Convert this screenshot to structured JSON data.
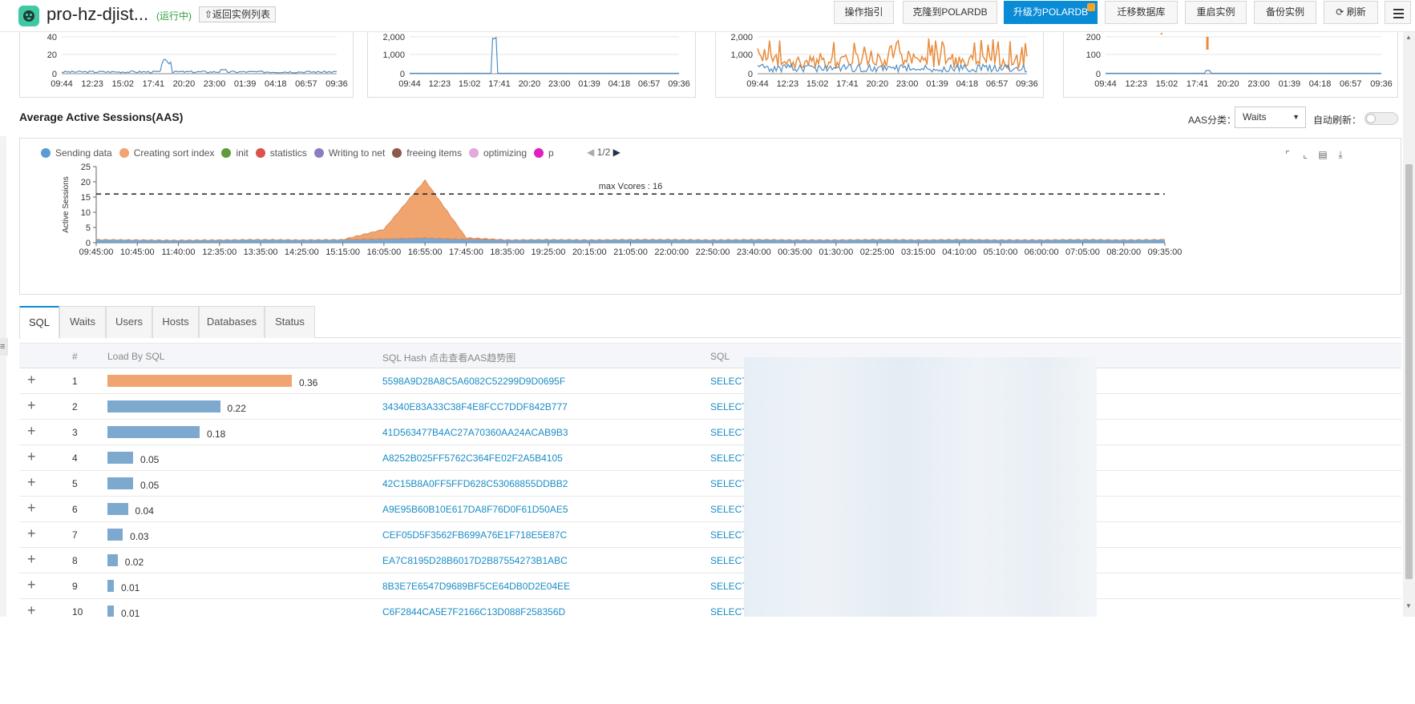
{
  "header": {
    "instance_name": "pro-hz-djist...",
    "status": "(运行中)",
    "back_label": "⇧返回实例列表",
    "buttons": [
      "操作指引",
      "克隆到POLARDB",
      "升级为POLARDB",
      "迁移数据库",
      "重启实例",
      "备份实例",
      "刷新"
    ],
    "refresh_icon": "refresh-icon",
    "menu_icon": "list-menu-icon",
    "primary_color": "#0a8bd6"
  },
  "mini_charts": [
    {
      "y_ticks": [
        "40",
        "20",
        "0"
      ],
      "x_ticks": [
        "09:44",
        "12:23",
        "15:02",
        "17:41",
        "20:20",
        "23:00",
        "01:39",
        "04:18",
        "06:57",
        "09:36"
      ]
    },
    {
      "y_ticks": [
        "2,000",
        "1,000",
        "0"
      ],
      "x_ticks": [
        "09:44",
        "12:23",
        "15:02",
        "17:41",
        "20:20",
        "23:00",
        "01:39",
        "04:18",
        "06:57",
        "09:36"
      ]
    },
    {
      "y_ticks": [
        "2,000",
        "1,000",
        "0"
      ],
      "x_ticks": [
        "09:44",
        "12:23",
        "15:02",
        "17:41",
        "20:20",
        "23:00",
        "01:39",
        "04:18",
        "06:57",
        "09:36"
      ]
    },
    {
      "y_ticks": [
        "200",
        "100",
        "0"
      ],
      "x_ticks": [
        "09:44",
        "12:23",
        "15:02",
        "17:41",
        "20:20",
        "23:00",
        "01:39",
        "04:18",
        "06:57",
        "09:36"
      ]
    }
  ],
  "aas": {
    "title": "Average Active Sessions(AAS)",
    "category_label": "AAS分类：",
    "category_value": "Waits",
    "auto_refresh_label": "自动刷新：",
    "legend": [
      {
        "name": "Sending data",
        "color": "#5b9bd5"
      },
      {
        "name": "Creating sort index",
        "color": "#f0a46e"
      },
      {
        "name": "init",
        "color": "#5e9b3c"
      },
      {
        "name": "statistics",
        "color": "#d9534f"
      },
      {
        "name": "Writing to net",
        "color": "#8e7cc3"
      },
      {
        "name": "freeing items",
        "color": "#8c5a4a"
      },
      {
        "name": "optimizing",
        "color": "#e2a9d9"
      },
      {
        "name": "p",
        "color": "#e020c0"
      }
    ],
    "legend_page": "1/2",
    "toolbox": [
      "zoom-icon",
      "zoom-reset-icon",
      "data-view-icon",
      "download-icon"
    ]
  },
  "chart_data": {
    "type": "area",
    "ylabel": "Active Sessions",
    "ylim": [
      0,
      25
    ],
    "y_ticks": [
      0,
      5,
      10,
      15,
      20,
      25
    ],
    "x": [
      "09:45:00",
      "10:45:00",
      "11:40:00",
      "12:35:00",
      "13:35:00",
      "14:25:00",
      "15:15:00",
      "16:05:00",
      "16:55:00",
      "17:45:00",
      "18:35:00",
      "19:25:00",
      "20:15:00",
      "21:05:00",
      "22:00:00",
      "22:50:00",
      "23:40:00",
      "00:35:00",
      "01:30:00",
      "02:25:00",
      "03:15:00",
      "04:10:00",
      "05:10:00",
      "06:00:00",
      "07:05:00",
      "08:20:00",
      "09:35:00"
    ],
    "max_vcores": 16,
    "max_vcores_label": "max Vcores : 16",
    "series": [
      {
        "name": "Sending data",
        "values": [
          1,
          0.9,
          0.8,
          0.9,
          1,
          0.9,
          1,
          1.2,
          1.5,
          1.1,
          0.9,
          1,
          0.9,
          1,
          1,
          0.9,
          1,
          0.9,
          0.9,
          1,
          0.9,
          1,
          0.9,
          0.9,
          1,
          0.9,
          1
        ]
      },
      {
        "name": "Creating sort index",
        "values": [
          0,
          0,
          0,
          0,
          0,
          0,
          0,
          3.2,
          19,
          0.5,
          0,
          0,
          0,
          0,
          0,
          0,
          0,
          0,
          0,
          0,
          0,
          0,
          0,
          0,
          0,
          0,
          0
        ]
      }
    ]
  },
  "tabs": [
    "SQL",
    "Waits",
    "Users",
    "Hosts",
    "Databases",
    "Status"
  ],
  "table": {
    "headers": {
      "num": "#",
      "load": "Load By SQL",
      "hash": "SQL Hash 点击查看AAS趋势图",
      "sql": "SQL"
    },
    "rows": [
      {
        "num": "1",
        "load": "0.36",
        "hash": "5598A9D28A8C5A6082C52299D9D0695F",
        "sql": "SELECT"
      },
      {
        "num": "2",
        "load": "0.22",
        "hash": "34340E83A33C38F4E8FCC7DDF842B777",
        "sql": "SELECT"
      },
      {
        "num": "3",
        "load": "0.18",
        "hash": "41D563477B4AC27A70360AA24ACAB9B3",
        "sql": "SELECT"
      },
      {
        "num": "4",
        "load": "0.05",
        "hash": "A8252B025FF5762C364FE02F2A5B4105",
        "sql": "SELECT"
      },
      {
        "num": "5",
        "load": "0.05",
        "hash": "42C15B8A0FF5FFD628C53068855DDBB2",
        "sql": "SELECT"
      },
      {
        "num": "6",
        "load": "0.04",
        "hash": "A9E95B60B10E617DA8F76D0F61D50AE5",
        "sql": "SELECT"
      },
      {
        "num": "7",
        "load": "0.03",
        "hash": "CEF05D5F3562FB699A76E1F718E5E87C",
        "sql": "SELECT"
      },
      {
        "num": "8",
        "load": "0.02",
        "hash": "EA7C8195D28B6017D2B87554273B1ABC",
        "sql": "SELECT"
      },
      {
        "num": "9",
        "load": "0.01",
        "hash": "8B3E7E6547D9689BF5CE64DB0D2E04EE",
        "sql": "SELECT"
      },
      {
        "num": "10",
        "load": "0.01",
        "hash": "C6F2844CA5E7F2166C13D088F258356D",
        "sql": "SELECT"
      }
    ]
  }
}
